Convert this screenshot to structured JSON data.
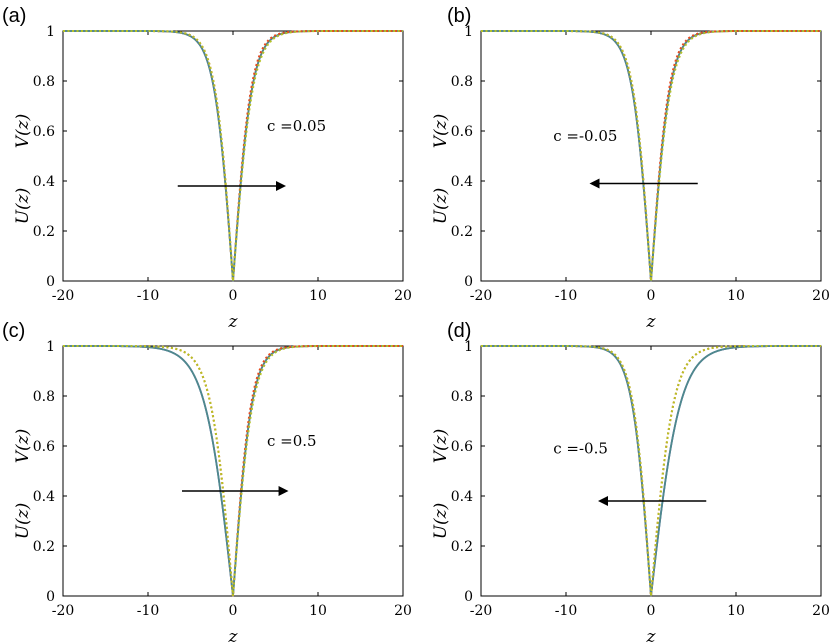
{
  "colors": {
    "U_curve": "#6a4fc0",
    "V_curve": "#4e8a8c",
    "U_dotted": "#e64b1e",
    "V_dotted": "#b5c225",
    "arrow": "#000000",
    "axes": "#000000"
  },
  "chart_data": [
    {
      "type": "line",
      "panel_label": "(a)",
      "ylabel_U": "U(z)",
      "ylabel_V": "V(z)",
      "xlabel": "z",
      "xlim": [
        -20,
        20
      ],
      "ylim": [
        0,
        1
      ],
      "xticks": [
        "-20",
        "-10",
        "0",
        "10",
        "20"
      ],
      "yticks": [
        "0",
        "0.2",
        "0.4",
        "0.6",
        "0.8",
        "1"
      ],
      "c": 0.05,
      "annotation": "c =0.05",
      "arrow": {
        "direction": "right",
        "from_x": -6.5,
        "to_x": 6,
        "y": 0.38
      },
      "series": [
        {
          "color_key": "U_curve",
          "style": "solid",
          "side_widths": [
            2.2,
            2.2
          ]
        },
        {
          "color_key": "V_curve",
          "style": "solid",
          "side_widths": [
            2.2,
            2.2
          ]
        },
        {
          "color_key": "U_dotted",
          "style": "dotted",
          "side_widths": [
            2.1,
            2.1
          ]
        },
        {
          "color_key": "V_dotted",
          "style": "dotted",
          "side_widths": [
            2.1,
            2.3
          ]
        }
      ]
    },
    {
      "type": "line",
      "panel_label": "(b)",
      "ylabel_U": "U(z)",
      "ylabel_V": "V(z)",
      "xlabel": "z",
      "xlim": [
        -20,
        20
      ],
      "ylim": [
        0,
        1
      ],
      "xticks": [
        "-20",
        "-10",
        "0",
        "10",
        "20"
      ],
      "yticks": [
        "0",
        "0.2",
        "0.4",
        "0.6",
        "0.8",
        "1"
      ],
      "c": -0.05,
      "annotation": "c =-0.05",
      "arrow": {
        "direction": "left",
        "from_x": 5.5,
        "to_x": -7,
        "y": 0.39
      },
      "series": [
        {
          "color_key": "U_curve",
          "style": "solid",
          "side_widths": [
            2.2,
            2.2
          ]
        },
        {
          "color_key": "V_curve",
          "style": "solid",
          "side_widths": [
            2.2,
            2.2
          ]
        },
        {
          "color_key": "U_dotted",
          "style": "dotted",
          "side_widths": [
            2.1,
            2.1
          ]
        },
        {
          "color_key": "V_dotted",
          "style": "dotted",
          "side_widths": [
            2.1,
            2.3
          ]
        }
      ]
    },
    {
      "type": "line",
      "panel_label": "(c)",
      "ylabel_U": "U(z)",
      "ylabel_V": "V(z)",
      "xlabel": "z",
      "xlim": [
        -20,
        20
      ],
      "ylim": [
        0,
        1
      ],
      "xticks": [
        "-20",
        "-10",
        "0",
        "10",
        "20"
      ],
      "yticks": [
        "0",
        "0.2",
        "0.4",
        "0.6",
        "0.8",
        "1"
      ],
      "c": 0.5,
      "annotation": "c =0.5",
      "arrow": {
        "direction": "right",
        "from_x": -6,
        "to_x": 6.3,
        "y": 0.42
      },
      "series": [
        {
          "color_key": "U_curve",
          "style": "solid",
          "side_widths": [
            3.3,
            2.2
          ]
        },
        {
          "color_key": "V_curve",
          "style": "solid",
          "side_widths": [
            3.3,
            2.2
          ]
        },
        {
          "color_key": "U_dotted",
          "style": "dotted",
          "side_widths": [
            2.6,
            2.1
          ]
        },
        {
          "color_key": "V_dotted",
          "style": "dotted",
          "side_widths": [
            2.6,
            2.3
          ]
        }
      ]
    },
    {
      "type": "line",
      "panel_label": "(d)",
      "ylabel_U": "U(z)",
      "ylabel_V": "V(z)",
      "xlabel": "z",
      "xlim": [
        -20,
        20
      ],
      "ylim": [
        0,
        1
      ],
      "xticks": [
        "-20",
        "-10",
        "0",
        "10",
        "20"
      ],
      "yticks": [
        "0",
        "0.2",
        "0.4",
        "0.6",
        "0.8",
        "1"
      ],
      "c": -0.5,
      "annotation": "c =-0.5",
      "arrow": {
        "direction": "left",
        "from_x": 6.5,
        "to_x": -6,
        "y": 0.38
      },
      "series": [
        {
          "color_key": "U_curve",
          "style": "solid",
          "side_widths": [
            2.2,
            3.4
          ]
        },
        {
          "color_key": "V_curve",
          "style": "solid",
          "side_widths": [
            2.2,
            3.4
          ]
        },
        {
          "color_key": "U_dotted",
          "style": "dotted",
          "side_widths": [
            2.1,
            2.6
          ]
        },
        {
          "color_key": "V_dotted",
          "style": "dotted",
          "side_widths": [
            2.1,
            2.6
          ]
        }
      ]
    }
  ]
}
